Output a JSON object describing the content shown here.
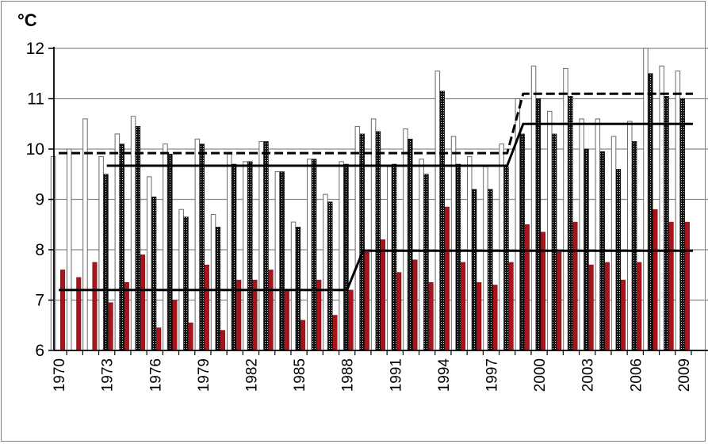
{
  "chart_data": {
    "type": "bar",
    "title": "",
    "xlabel": "",
    "ylabel": "",
    "unit_label": "°C",
    "ylim": [
      6,
      12
    ],
    "yticks": [
      6,
      7,
      8,
      9,
      10,
      11,
      12
    ],
    "grid": true,
    "x": [
      1970,
      1971,
      1972,
      1973,
      1974,
      1975,
      1976,
      1977,
      1978,
      1979,
      1980,
      1981,
      1982,
      1983,
      1984,
      1985,
      1986,
      1987,
      1988,
      1989,
      1990,
      1991,
      1992,
      1993,
      1994,
      1995,
      1996,
      1997,
      1998,
      1999,
      2000,
      2001,
      2002,
      2003,
      2004,
      2005,
      2006,
      2007,
      2008,
      2009
    ],
    "xtick_labels": [
      "1970",
      "1973",
      "1976",
      "1979",
      "1982",
      "1985",
      "1988",
      "1991",
      "1994",
      "1997",
      "2000",
      "2003",
      "2006",
      "2009"
    ],
    "series": [
      {
        "style": "white-outline",
        "color": "#ffffff",
        "values": [
          9.85,
          10.0,
          10.6,
          9.85,
          10.3,
          10.65,
          9.45,
          10.1,
          8.8,
          10.2,
          8.7,
          9.9,
          9.75,
          10.15,
          9.55,
          8.55,
          9.8,
          9.1,
          9.75,
          10.45,
          10.6,
          9.65,
          10.4,
          9.8,
          11.55,
          10.25,
          9.85,
          9.65,
          10.1,
          11.0,
          11.65,
          10.75,
          11.6,
          10.6,
          10.6,
          10.25,
          10.55,
          12.0,
          11.65,
          11.55
        ]
      },
      {
        "style": "black-dotted",
        "color": "#1a1a1a",
        "values": [
          null,
          null,
          null,
          9.5,
          10.1,
          10.45,
          9.05,
          9.9,
          8.65,
          10.1,
          8.45,
          9.7,
          9.75,
          10.15,
          9.55,
          8.45,
          9.8,
          8.95,
          9.7,
          10.3,
          10.35,
          9.7,
          10.2,
          9.5,
          11.15,
          9.7,
          9.2,
          9.2,
          9.65,
          10.3,
          11.0,
          10.3,
          11.05,
          10.0,
          9.95,
          9.6,
          10.15,
          11.5,
          11.05,
          11.0
        ]
      },
      {
        "style": "red",
        "color": "#a8141c",
        "values": [
          7.6,
          7.45,
          7.75,
          6.95,
          7.35,
          7.9,
          6.45,
          7.0,
          6.55,
          7.7,
          6.4,
          7.4,
          7.4,
          7.6,
          7.2,
          6.6,
          7.4,
          6.7,
          7.2,
          7.95,
          8.2,
          7.55,
          7.8,
          7.35,
          8.85,
          7.75,
          7.35,
          7.3,
          7.75,
          8.5,
          8.35,
          7.95,
          8.55,
          7.7,
          7.75,
          7.4,
          7.75,
          8.8,
          8.55,
          8.55
        ]
      }
    ],
    "reference_lines": [
      {
        "style": "dashed",
        "color": "#000000",
        "points": [
          [
            1970,
            9.92
          ],
          [
            1998,
            9.92
          ],
          [
            1999,
            11.1
          ],
          [
            2009.6,
            11.1
          ]
        ]
      },
      {
        "style": "solid",
        "color": "#000000",
        "points": [
          [
            1973,
            9.67
          ],
          [
            1998,
            9.67
          ],
          [
            1999,
            10.5
          ],
          [
            2009.6,
            10.5
          ]
        ]
      },
      {
        "style": "solid",
        "color": "#000000",
        "points": [
          [
            1970,
            7.2
          ],
          [
            1988,
            7.2
          ],
          [
            1989,
            7.98
          ],
          [
            2009.6,
            7.98
          ]
        ]
      }
    ]
  }
}
